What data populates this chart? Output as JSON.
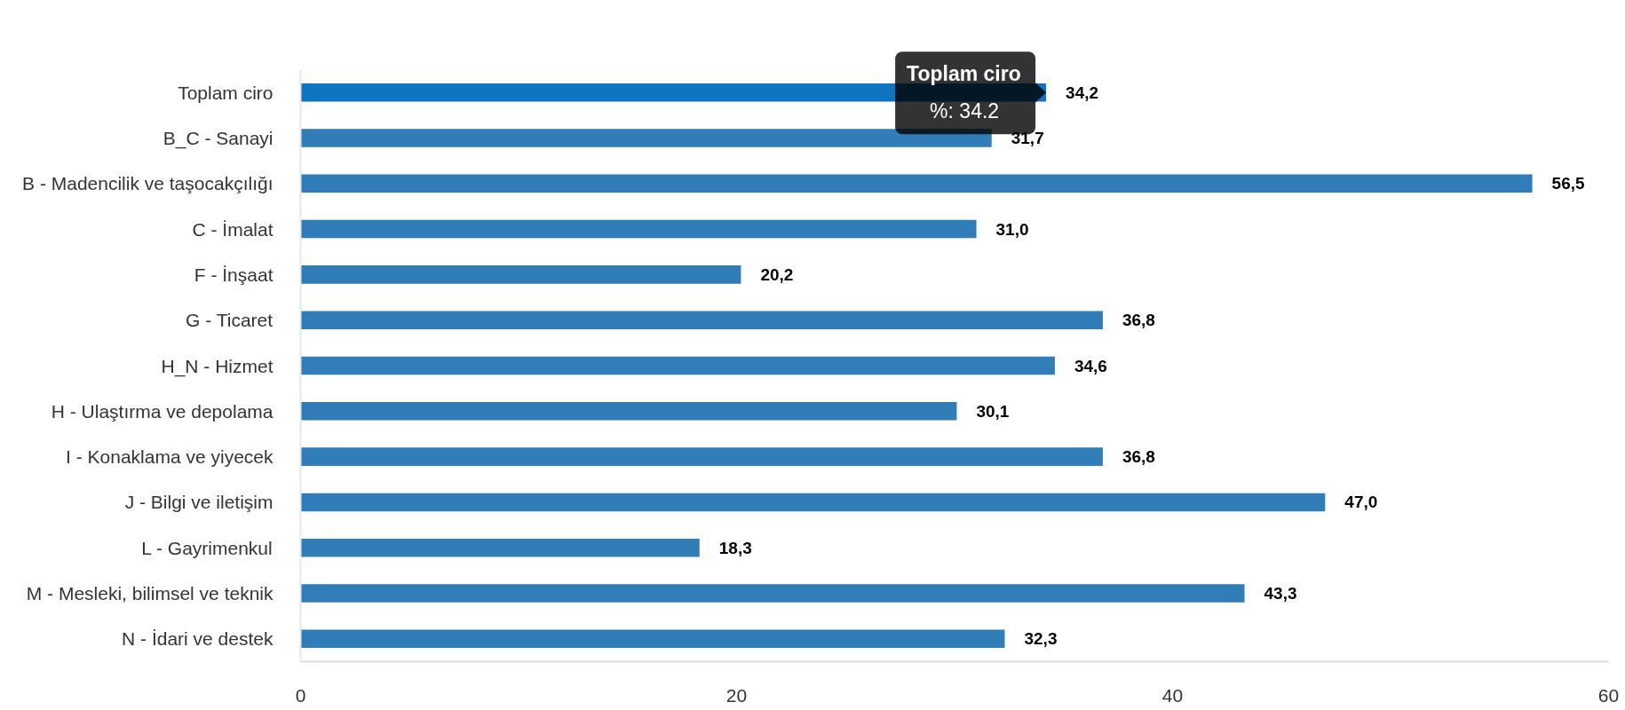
{
  "chart_data": {
    "type": "bar",
    "orientation": "horizontal",
    "categories": [
      "Toplam ciro",
      "B_C - Sanayi",
      "B - Madencilik ve taşocakçılığı",
      "C - İmalat",
      "F - İnşaat",
      "G - Ticaret",
      "H_N - Hizmet",
      "H - Ulaştırma ve depolama",
      "I - Konaklama ve yiyecek",
      "J - Bilgi ve iletişim",
      "L - Gayrimenkul",
      "M - Mesleki, bilimsel ve teknik",
      "N - İdari ve destek"
    ],
    "values": [
      34.2,
      31.7,
      56.5,
      31.0,
      20.2,
      36.8,
      34.6,
      30.1,
      36.8,
      47.0,
      18.3,
      43.3,
      32.3
    ],
    "value_labels": [
      "34,2",
      "31,7",
      "56,5",
      "31,0",
      "20,2",
      "36,8",
      "34,6",
      "30,1",
      "36,8",
      "47,0",
      "18,3",
      "43,3",
      "32,3"
    ],
    "colors": [
      "#0f75c3",
      "#317db8",
      "#317db8",
      "#317db8",
      "#317db8",
      "#317db8",
      "#317db8",
      "#317db8",
      "#317db8",
      "#317db8",
      "#317db8",
      "#317db8",
      "#317db8"
    ],
    "xlim": [
      0,
      60
    ],
    "xticks": [
      0,
      20,
      40,
      60
    ],
    "annotations": [
      {
        "text": "Toplam ciro\n%: 34.2",
        "x": 34.2,
        "y": "Toplam ciro"
      }
    ]
  }
}
